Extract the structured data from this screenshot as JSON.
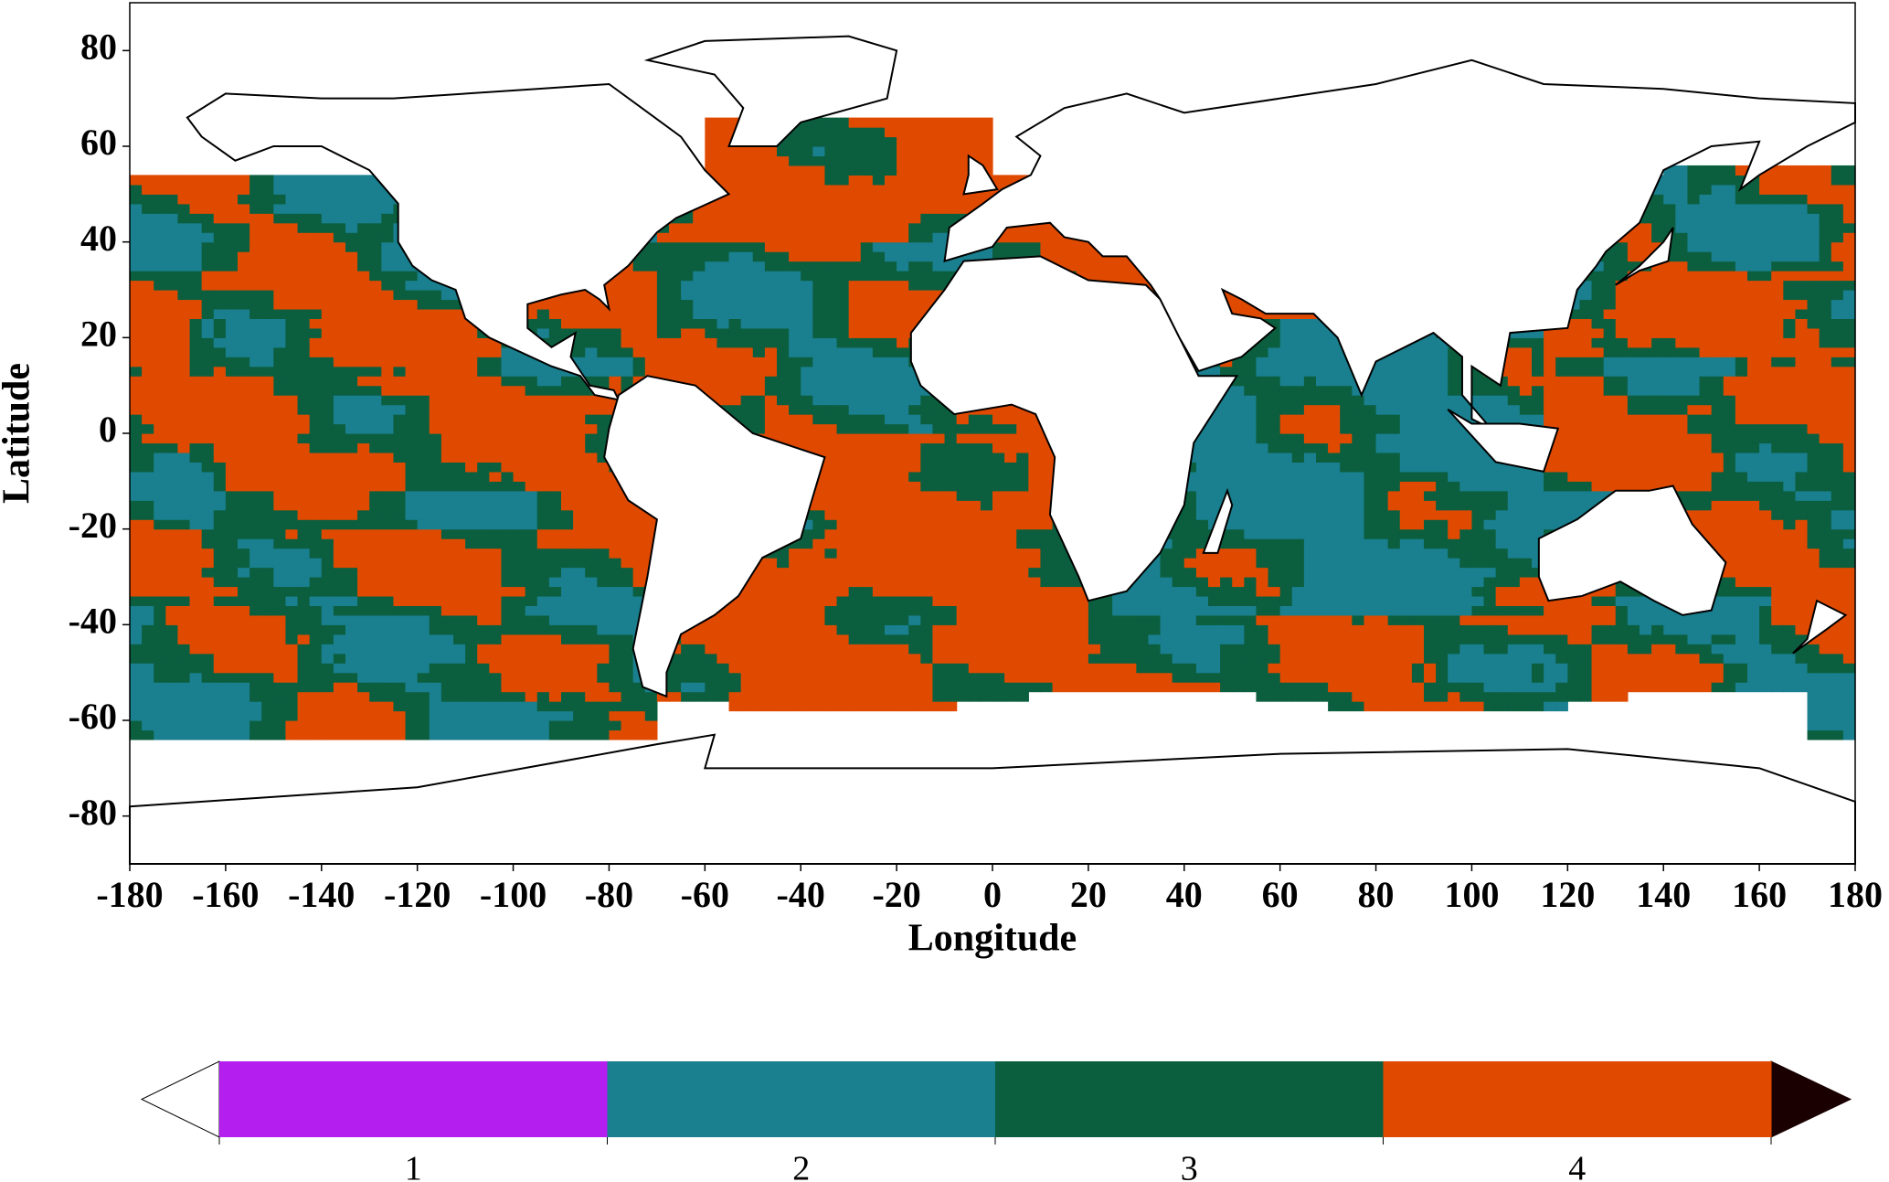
{
  "map": {
    "xlabel": "Longitude",
    "ylabel": "Latitude",
    "xlim": [
      -180,
      180
    ],
    "ylim": [
      -90,
      90
    ],
    "xticks": [
      -180,
      -160,
      -140,
      -120,
      -100,
      -80,
      -60,
      -40,
      -20,
      0,
      20,
      40,
      60,
      80,
      100,
      120,
      140,
      160,
      180
    ],
    "yticks": [
      -80,
      -60,
      -40,
      -20,
      0,
      20,
      40,
      60,
      80
    ]
  },
  "colorbar": {
    "ticks": [
      1,
      2,
      3,
      4
    ],
    "colors": [
      "#b41ff0",
      "#1a7f8e",
      "#0b5f3f",
      "#e04a00"
    ],
    "under_color": "#ffffff",
    "over_color": "#1a0000"
  }
}
